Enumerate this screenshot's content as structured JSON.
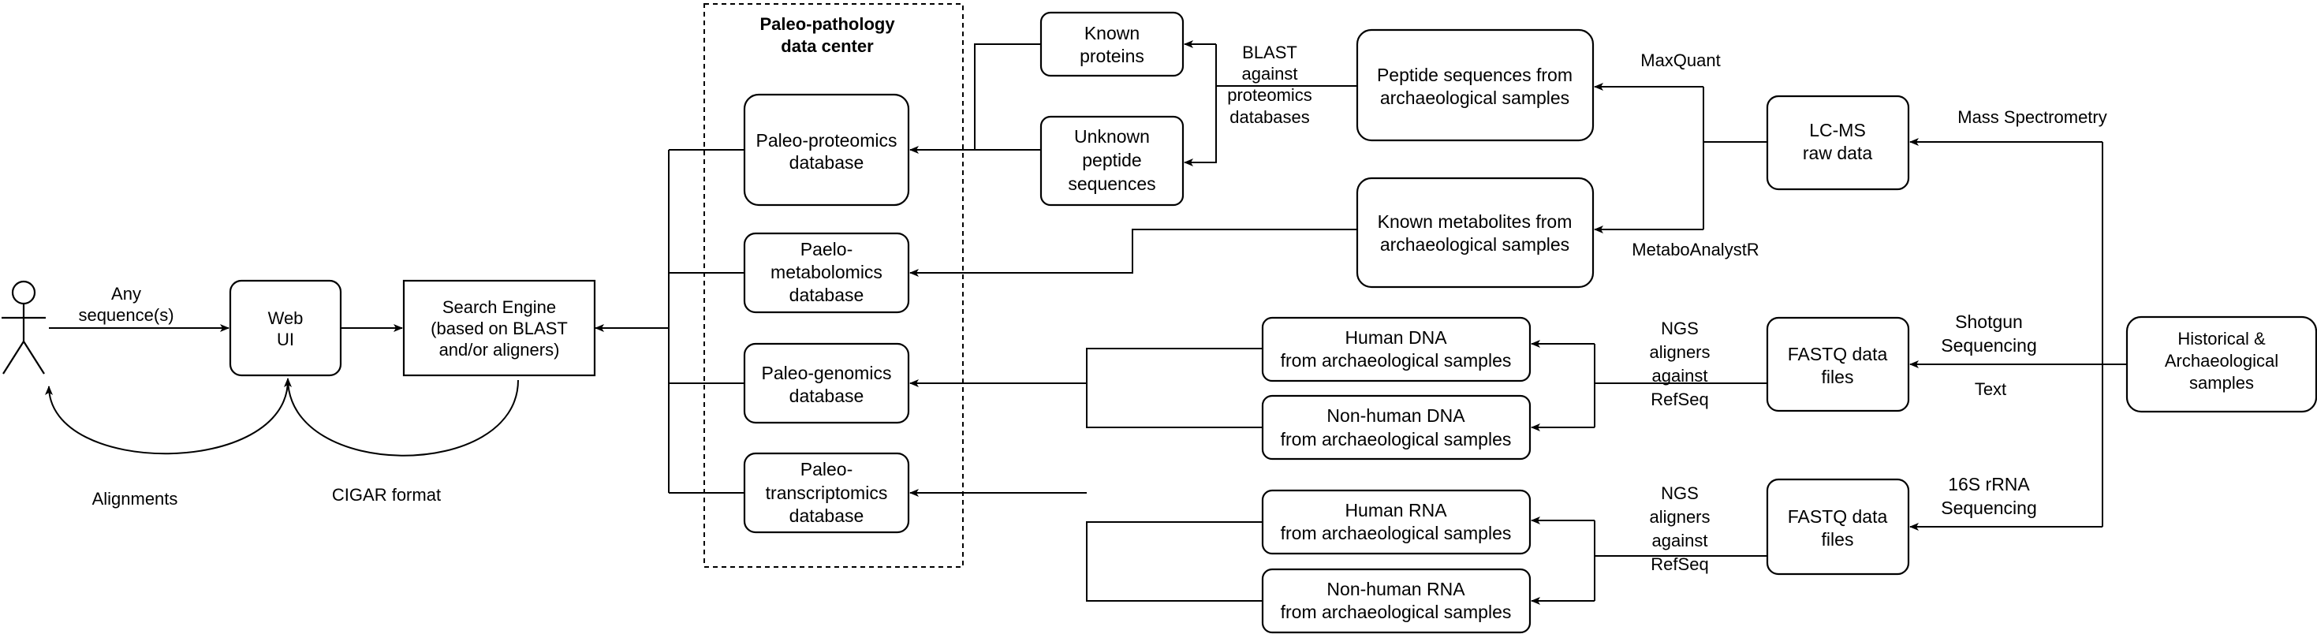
{
  "diagram": {
    "center_title": [
      "Paleo-pathology",
      "data center"
    ],
    "nodes": {
      "web_ui": [
        "Web",
        "UI"
      ],
      "search_engine": [
        "Search Engine",
        "(based on BLAST",
        "and/or aligners)"
      ],
      "proteomics_db": [
        "Paleo-proteomics",
        "database"
      ],
      "metabolomics_db": [
        "Paelo-",
        "metabolomics",
        "database"
      ],
      "genomics_db": [
        "Paleo-genomics",
        "database"
      ],
      "transcriptomics_db": [
        "Paleo-",
        "transcriptomics",
        "database"
      ],
      "known_proteins": [
        "Known",
        "proteins"
      ],
      "unknown_peptides": [
        "Unknown",
        "peptide",
        "sequences"
      ],
      "peptide_sequences": [
        "Peptide sequences from",
        "archaeological samples"
      ],
      "known_metabolites": [
        "Known metabolites from",
        "archaeological samples"
      ],
      "human_dna": [
        "Human DNA",
        "from archaeological samples"
      ],
      "nonhuman_dna": [
        "Non-human DNA",
        "from archaeological samples"
      ],
      "human_rna": [
        "Human RNA",
        "from archaeological samples"
      ],
      "nonhuman_rna": [
        "Non-human RNA",
        "from archaeological samples"
      ],
      "lcms": [
        "LC-MS",
        "raw data"
      ],
      "fastq_dna": [
        "FASTQ data",
        "files"
      ],
      "fastq_rna": [
        "FASTQ data",
        "files"
      ],
      "samples": [
        "Historical &",
        "Archaeological",
        "samples"
      ]
    },
    "labels": {
      "any_sequences": [
        "Any",
        "sequence(s)"
      ],
      "alignments": "Alignments",
      "cigar": "CIGAR format",
      "blast": [
        "BLAST",
        "against",
        "proteomics",
        "databases"
      ],
      "maxquant": "MaxQuant",
      "metaboanalyst": "MetaboAnalystR",
      "mass_spec": "Mass Spectrometry",
      "ngs_dna": [
        "NGS",
        "aligners",
        "against",
        "RefSeq"
      ],
      "ngs_rna": [
        "NGS",
        "aligners",
        "against",
        "RefSeq"
      ],
      "shotgun": [
        "Shotgun",
        "Sequencing"
      ],
      "text": "Text",
      "rrna": [
        "16S rRNA",
        "Sequencing"
      ]
    }
  }
}
